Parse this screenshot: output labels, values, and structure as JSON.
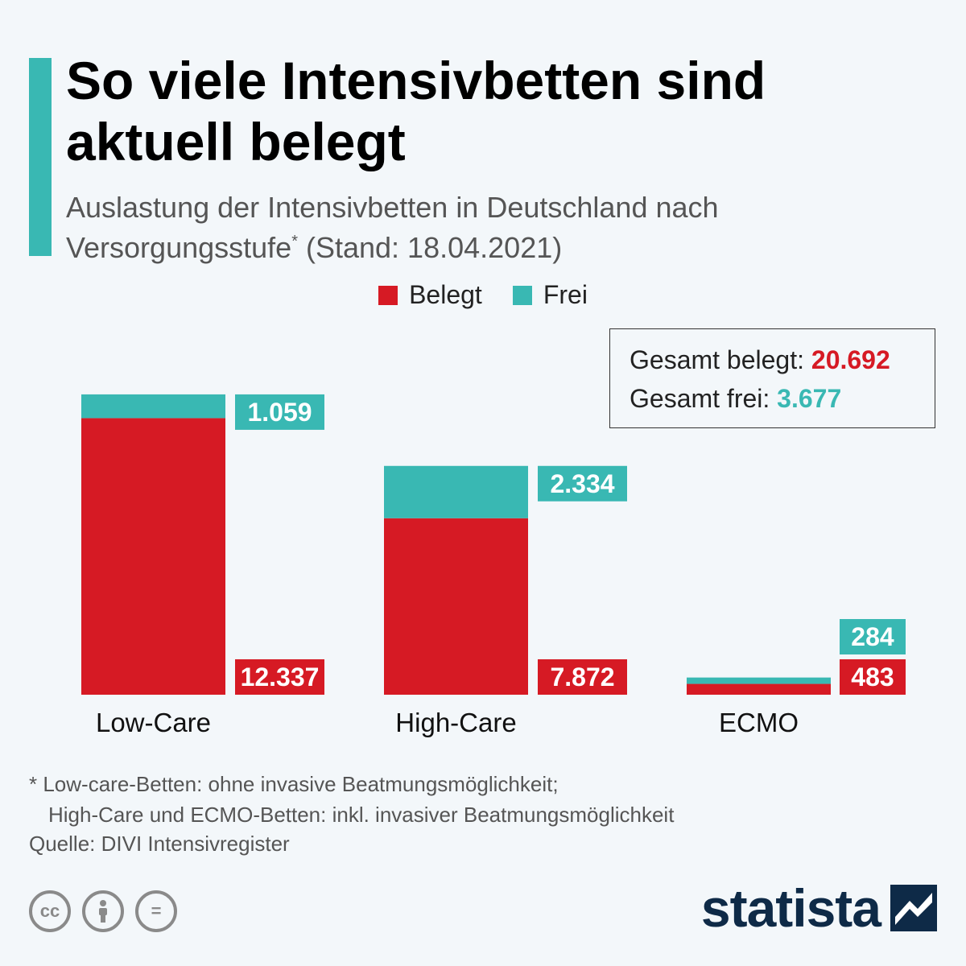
{
  "title": "So viele Intensivbetten sind aktuell belegt",
  "subtitle_main": "Auslastung der Intensivbetten in Deutschland nach Versorgungsstufe",
  "subtitle_mark": "*",
  "subtitle_date": " (Stand: 18.04.2021)",
  "colors": {
    "belegt": "#d61a24",
    "frei": "#39b8b3",
    "accent": "#39b8b3"
  },
  "legend": {
    "belegt": "Belegt",
    "frei": "Frei"
  },
  "totals": {
    "belegt_label": "Gesamt belegt: ",
    "belegt_value": "20.692",
    "frei_label": "Gesamt frei: ",
    "frei_value": "3.677"
  },
  "chart_data": {
    "type": "bar",
    "stacked": true,
    "categories": [
      "Low-Care",
      "High-Care",
      "ECMO"
    ],
    "series": [
      {
        "name": "Belegt",
        "values": [
          12337,
          7872,
          483
        ],
        "labels": [
          "12.337",
          "7.872",
          "483"
        ]
      },
      {
        "name": "Frei",
        "values": [
          1059,
          2334,
          284
        ],
        "labels": [
          "1.059",
          "2.334",
          "284"
        ]
      }
    ],
    "title": "So viele Intensivbetten sind aktuell belegt",
    "xlabel": "",
    "ylabel": "",
    "grid": false,
    "legend_position": "top-center"
  },
  "footnote_line1": "* Low-care-Betten: ohne invasive Beatmungsmöglichkeit;",
  "footnote_line2": "High-Care und ECMO-Betten: inkl. invasiver Beatmungsmöglichkeit",
  "source": "Quelle: DIVI Intensivregister",
  "license_icons": [
    "cc-icon",
    "attribution-icon",
    "no-derivatives-icon"
  ],
  "license_glyphs": [
    "cc",
    "=",
    ""
  ],
  "logo": "statista"
}
